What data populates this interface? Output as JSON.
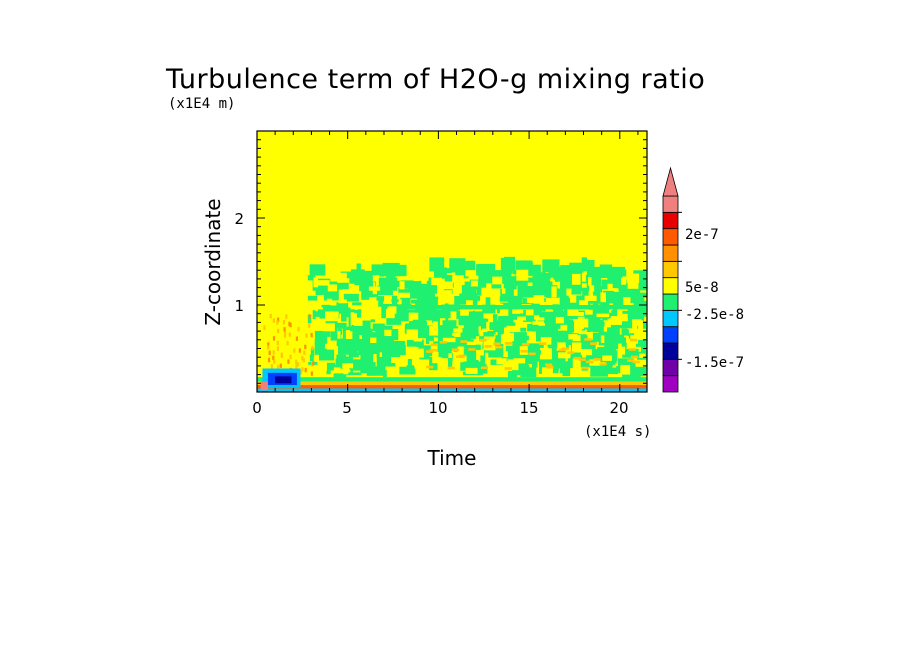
{
  "chart_data": {
    "type": "heatmap",
    "title": "Turbulence term of H2O-g mixing ratio",
    "y_unit_label": "(x1E4 m)",
    "x_unit_label": "(x1E4 s)",
    "xlabel": "Time",
    "ylabel": "Z-coordinate",
    "xlim": [
      0,
      21.5
    ],
    "ylim": [
      0,
      3.0
    ],
    "x_ticks": [
      "0",
      "5",
      "10",
      "15",
      "20"
    ],
    "y_ticks": [
      "1",
      "2"
    ],
    "x_tick_values": [
      0,
      5,
      10,
      15,
      20
    ],
    "y_tick_values": [
      1,
      2
    ],
    "colorbar": {
      "colors": [
        "#a000c0",
        "#7000a8",
        "#00009a",
        "#0040ff",
        "#00c8ff",
        "#20f070",
        "#ffff00",
        "#ffc800",
        "#ff9000",
        "#ff5a00",
        "#e80000",
        "#f08080"
      ],
      "labels": [
        "-1.5e-7",
        "-2.5e-8",
        "5e-8",
        "2e-7"
      ],
      "label_bounds": [
        2,
        5,
        8,
        11
      ],
      "extend_top": true
    },
    "background_level": "near zero (yellow)",
    "regions": [
      {
        "level": "green",
        "x": [
          3,
          21.5
        ],
        "y": [
          0.15,
          1.4
        ],
        "note": "patchy negative band"
      },
      {
        "level": "green",
        "x": [
          8,
          21.5
        ],
        "y": [
          0.95,
          1.0
        ],
        "note": "thin horizontal streak"
      },
      {
        "level": "orange",
        "x": [
          0,
          21.5
        ],
        "y": [
          0.08,
          0.12
        ],
        "note": "near-surface band"
      },
      {
        "level": "blue",
        "x": [
          0.5,
          2.5
        ],
        "y": [
          0.0,
          0.25
        ],
        "note": "early-time negative core"
      }
    ]
  }
}
